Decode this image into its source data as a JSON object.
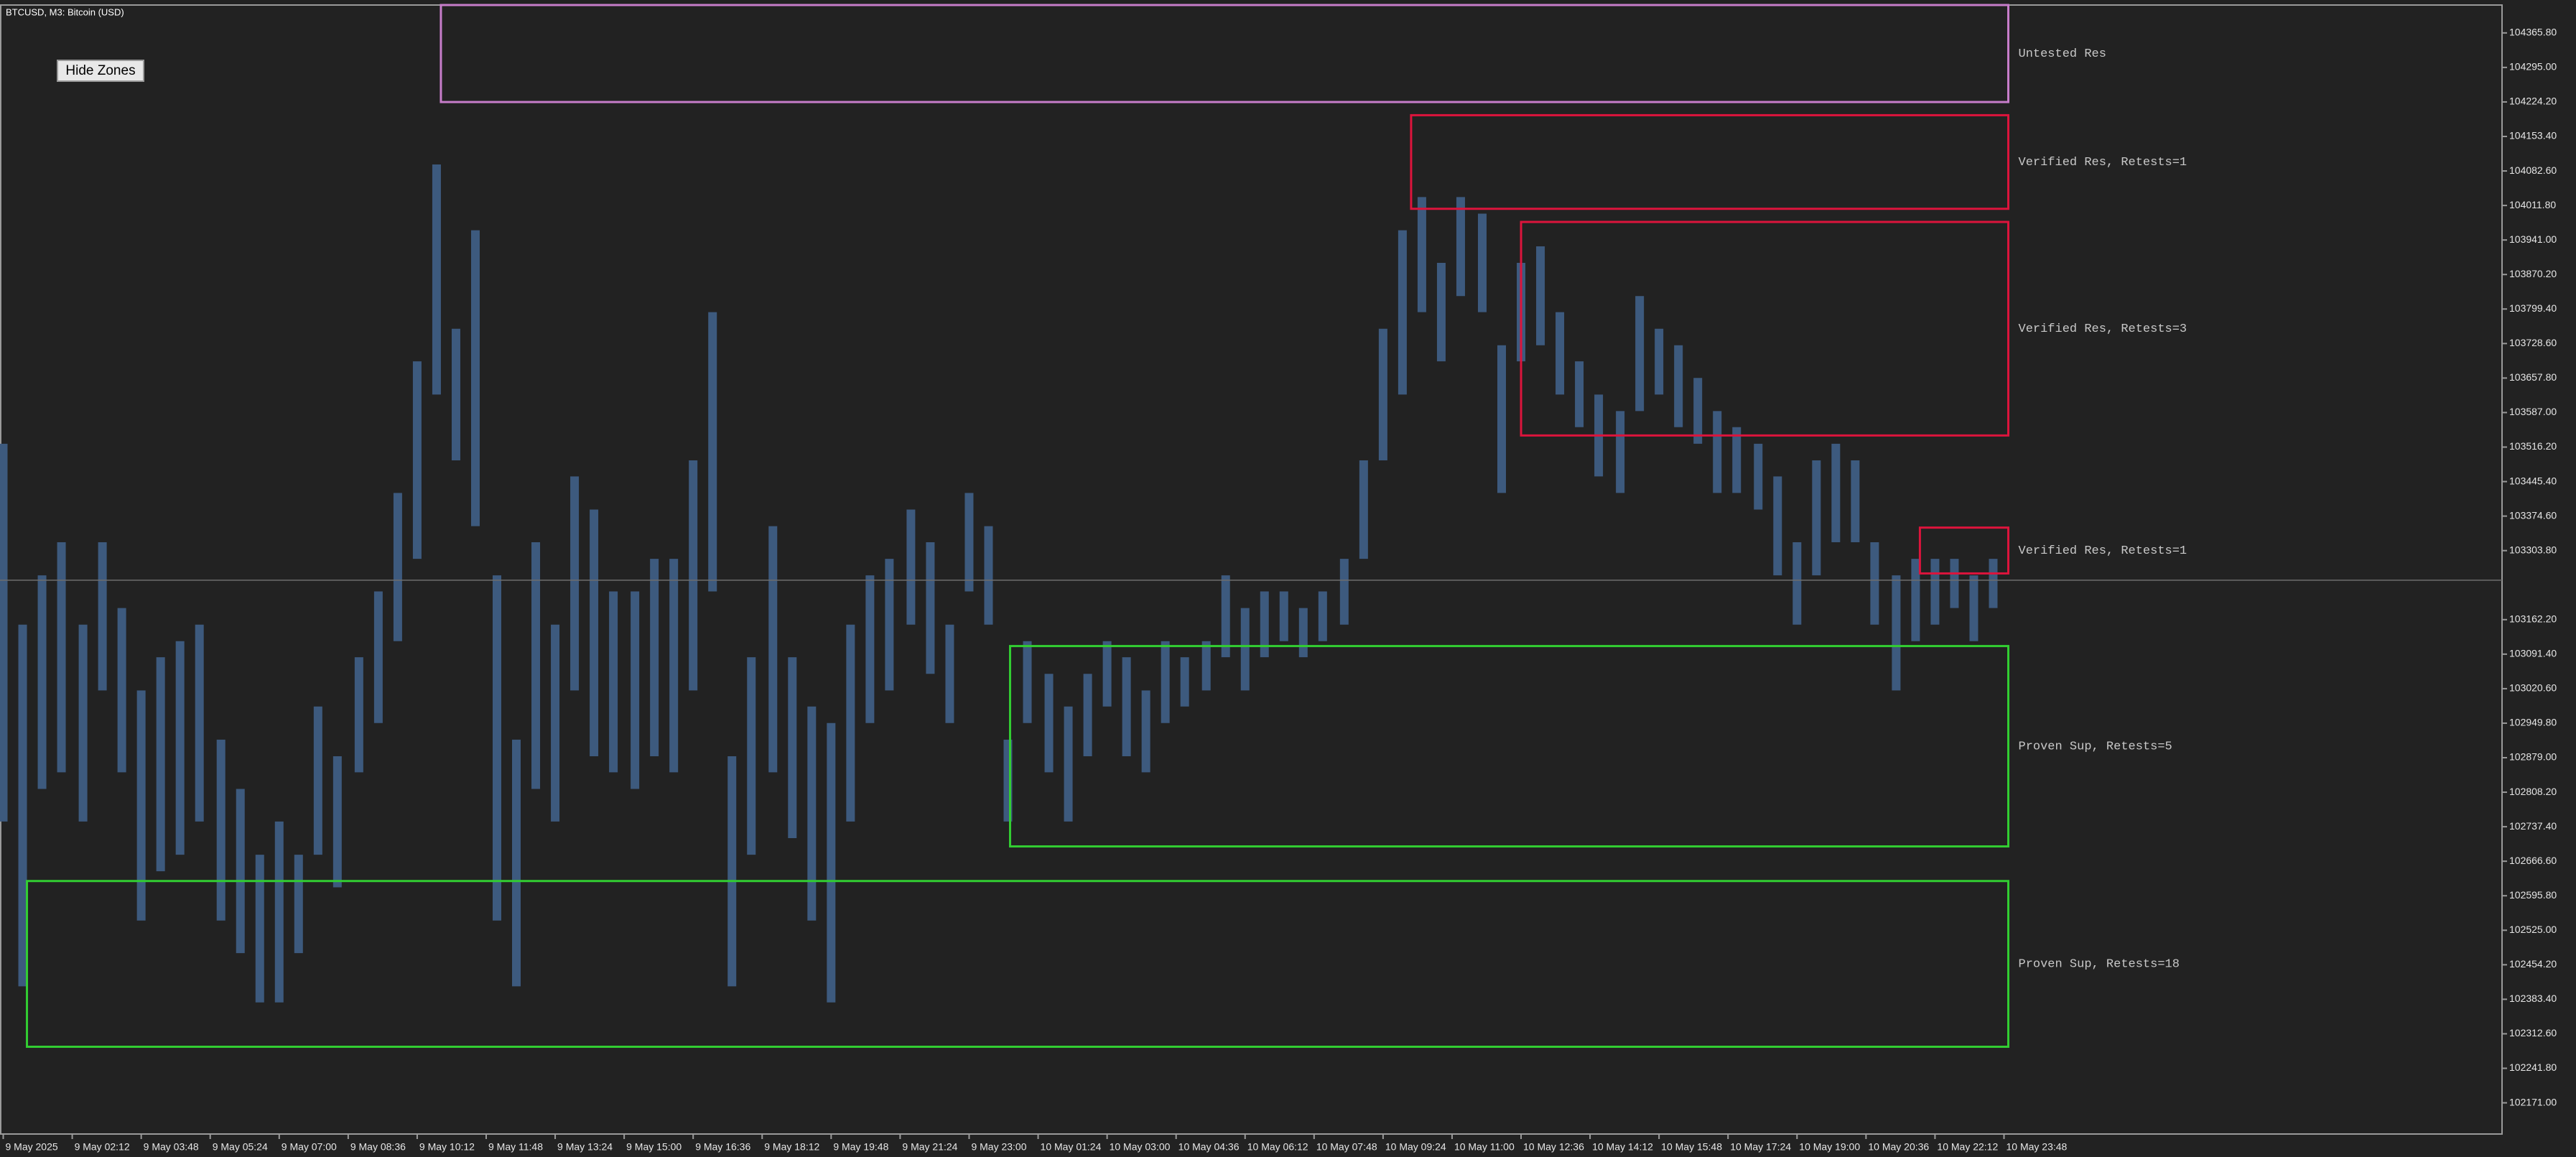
{
  "window": {
    "title": "BTCUSD, M3:  Bitcoin (USD)"
  },
  "button": {
    "label": "Hide Zones"
  },
  "chart_data": {
    "type": "range_bar",
    "color": "#3d5a7e",
    "xlim": [
      -1.5,
      1159
    ],
    "ylim": [
      102107,
      104423
    ],
    "xticks": [
      {
        "value": 0,
        "label": "9 May 2025"
      },
      {
        "value": 32,
        "label": "9 May 02:12"
      },
      {
        "value": 64,
        "label": "9 May 03:48"
      },
      {
        "value": 96,
        "label": "9 May 05:24"
      },
      {
        "value": 128,
        "label": "9 May 07:00"
      },
      {
        "value": 160,
        "label": "9 May 08:36"
      },
      {
        "value": 192,
        "label": "9 May 10:12"
      },
      {
        "value": 224,
        "label": "9 May 11:48"
      },
      {
        "value": 256,
        "label": "9 May 13:24"
      },
      {
        "value": 288,
        "label": "9 May 15:00"
      },
      {
        "value": 320,
        "label": "9 May 16:36"
      },
      {
        "value": 352,
        "label": "9 May 18:12"
      },
      {
        "value": 384,
        "label": "9 May 19:48"
      },
      {
        "value": 416,
        "label": "9 May 21:24"
      },
      {
        "value": 448,
        "label": "9 May 23:00"
      },
      {
        "value": 480,
        "label": "10 May 01:24"
      },
      {
        "value": 512,
        "label": "10 May 03:00"
      },
      {
        "value": 544,
        "label": "10 May 04:36"
      },
      {
        "value": 576,
        "label": "10 May 06:12"
      },
      {
        "value": 608,
        "label": "10 May 07:48"
      },
      {
        "value": 640,
        "label": "10 May 09:24"
      },
      {
        "value": 672,
        "label": "10 May 11:00"
      },
      {
        "value": 704,
        "label": "10 May 12:36"
      },
      {
        "value": 736,
        "label": "10 May 14:12"
      },
      {
        "value": 768,
        "label": "10 May 15:48"
      },
      {
        "value": 800,
        "label": "10 May 17:24"
      },
      {
        "value": 832,
        "label": "10 May 19:00"
      },
      {
        "value": 864,
        "label": "10 May 20:36"
      },
      {
        "value": 896,
        "label": "10 May 22:12"
      },
      {
        "value": 928,
        "label": "10 May 23:48"
      }
    ],
    "yticks": [
      {
        "value": 104365.8,
        "label": "104365.80"
      },
      {
        "value": 104295,
        "label": "104295.00"
      },
      {
        "value": 104224.2,
        "label": "104224.20"
      },
      {
        "value": 104153.4,
        "label": "104153.40"
      },
      {
        "value": 104082.6,
        "label": "104082.60"
      },
      {
        "value": 104011.8,
        "label": "104011.80"
      },
      {
        "value": 103941,
        "label": "103941.00"
      },
      {
        "value": 103870.2,
        "label": "103870.20"
      },
      {
        "value": 103799.4,
        "label": "103799.40"
      },
      {
        "value": 103728.6,
        "label": "103728.60"
      },
      {
        "value": 103657.8,
        "label": "103657.80"
      },
      {
        "value": 103587,
        "label": "103587.00"
      },
      {
        "value": 103516.2,
        "label": "103516.20"
      },
      {
        "value": 103445.4,
        "label": "103445.40"
      },
      {
        "value": 103374.6,
        "label": "103374.60"
      },
      {
        "value": 103303.8,
        "label": "103303.80"
      },
      {
        "value": 103162.2,
        "label": "103162.20"
      },
      {
        "value": 103091.4,
        "label": "103091.40"
      },
      {
        "value": 103020.6,
        "label": "103020.60"
      },
      {
        "value": 102949.8,
        "label": "102949.80"
      },
      {
        "value": 102879,
        "label": "102879.00"
      },
      {
        "value": 102808.2,
        "label": "102808.20"
      },
      {
        "value": 102737.4,
        "label": "102737.40"
      },
      {
        "value": 102666.6,
        "label": "102666.60"
      },
      {
        "value": 102595.8,
        "label": "102595.80"
      },
      {
        "value": 102525,
        "label": "102525.00"
      },
      {
        "value": 102454.2,
        "label": "102454.20"
      },
      {
        "value": 102383.4,
        "label": "102383.40"
      },
      {
        "value": 102312.6,
        "label": "102312.60"
      },
      {
        "value": 102241.8,
        "label": "102241.80"
      },
      {
        "value": 102171,
        "label": "102171.00"
      }
    ],
    "x": [
      0,
      9,
      18,
      27,
      37,
      46,
      55,
      64,
      73,
      82,
      91,
      101,
      110,
      119,
      128,
      137,
      146,
      155,
      165,
      174,
      183,
      192,
      201,
      210,
      219,
      229,
      238,
      247,
      256,
      265,
      274,
      283,
      293,
      302,
      311,
      320,
      329,
      338,
      347,
      357,
      366,
      375,
      384,
      393,
      402,
      411,
      421,
      430,
      439,
      448,
      457,
      466,
      475,
      485,
      494,
      503,
      512,
      521,
      530,
      539,
      548,
      558,
      567,
      576,
      585,
      594,
      603,
      612,
      622,
      631,
      640,
      649,
      658,
      667,
      676,
      686,
      695,
      704,
      713,
      722,
      731,
      740,
      750,
      759,
      768,
      777,
      786,
      795,
      804,
      814,
      823,
      832,
      841,
      850,
      859,
      868,
      878,
      887,
      896,
      905,
      914,
      923
    ],
    "high": [
      103523,
      103152,
      103253,
      103321,
      103152,
      103321,
      103186,
      103017,
      103085,
      103118,
      103152,
      102916,
      102815,
      102680,
      102748,
      102680,
      102984,
      102882,
      103085,
      103220,
      103422,
      103692,
      104096,
      103759,
      103961,
      103253,
      102916,
      103321,
      103152,
      103456,
      103388,
      103220,
      103220,
      103287,
      103287,
      103489,
      103793,
      102882,
      103085,
      103354,
      103085,
      102984,
      102950,
      103152,
      103253,
      103287,
      103388,
      103321,
      103152,
      103422,
      103354,
      102916,
      103118,
      103051,
      102984,
      103051,
      103118,
      103085,
      103017,
      103118,
      103085,
      103118,
      103253,
      103186,
      103220,
      103220,
      103186,
      103220,
      103287,
      103489,
      103759,
      103961,
      104029,
      103894,
      104029,
      103995,
      103725,
      103894,
      103928,
      103793,
      103692,
      103624,
      103590,
      103826,
      103759,
      103725,
      103658,
      103590,
      103557,
      103523,
      103456,
      103321,
      103489,
      103523,
      103489,
      103321,
      103253,
      103287,
      103287,
      103287,
      103253,
      103287
    ],
    "low": [
      102748,
      102410,
      102815,
      102849,
      102748,
      103017,
      102849,
      102545,
      102646,
      102680,
      102748,
      102545,
      102478,
      102377,
      102377,
      102478,
      102680,
      102613,
      102849,
      102950,
      103118,
      103287,
      103624,
      103489,
      103354,
      102545,
      102410,
      102815,
      102748,
      103017,
      102882,
      102849,
      102815,
      102882,
      102849,
      103017,
      103220,
      102410,
      102680,
      102849,
      102714,
      102545,
      102377,
      102748,
      102950,
      103017,
      103152,
      103051,
      102950,
      103220,
      103152,
      102748,
      102950,
      102849,
      102748,
      102882,
      102984,
      102882,
      102849,
      102950,
      102984,
      103017,
      103085,
      103017,
      103085,
      103118,
      103085,
      103118,
      103152,
      103287,
      103489,
      103624,
      103793,
      103692,
      103826,
      103793,
      103422,
      103692,
      103725,
      103624,
      103557,
      103456,
      103422,
      103590,
      103624,
      103557,
      103523,
      103422,
      103422,
      103388,
      103253,
      103152,
      103253,
      103321,
      103321,
      103152,
      103017,
      103118,
      103152,
      103186,
      103118,
      103186
    ],
    "last_price": 103243,
    "zones": [
      {
        "label": "Untested Res",
        "color": "#c77dca",
        "top": 104423,
        "bottom": 104224,
        "x_start": 203,
        "x_end": 930
      },
      {
        "label": "Verified Res, Retests=1",
        "color": "#dc143c",
        "top": 104197,
        "bottom": 104005,
        "x_start": 653,
        "x_end": 930
      },
      {
        "label": "Verified Res, Retests=3",
        "color": "#dc143c",
        "top": 103978,
        "bottom": 103540,
        "x_start": 704,
        "x_end": 930
      },
      {
        "label": "Verified Res, Retests=1",
        "color": "#dc143c",
        "top": 103351,
        "bottom": 103257,
        "x_start": 889,
        "x_end": 930
      },
      {
        "label": "Proven Sup, Retests=5",
        "color": "#32cd32",
        "top": 103108,
        "bottom": 102697,
        "x_start": 467,
        "x_end": 930
      },
      {
        "label": "Proven Sup, Retests=18",
        "color": "#32cd32",
        "top": 102626,
        "bottom": 102286,
        "x_start": 11,
        "x_end": 930
      }
    ]
  }
}
